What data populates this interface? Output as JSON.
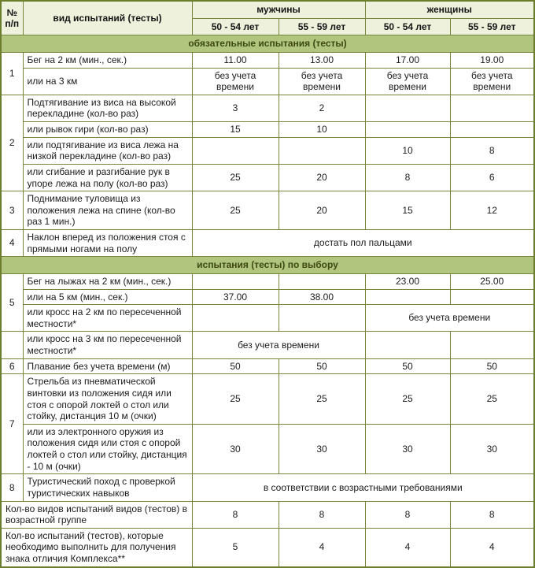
{
  "colors": {
    "outer_border": "#6d7d2e",
    "inner_border": "#76863a",
    "header_bg": "#eef1dc",
    "section_bg": "#b2c57f",
    "section_text": "#3c490f",
    "body_bg": "#ffffff",
    "body_text": "#1c1c1c"
  },
  "header": {
    "col_num": "№ п/п",
    "col_test": "вид испытаний (тесты)",
    "group_men": "мужчины",
    "group_women": "женщины",
    "ages": [
      "50 - 54 лет",
      "55 - 59 лет",
      "50 - 54 лет",
      "55 - 59 лет"
    ]
  },
  "rows": [
    {
      "type": "section",
      "text": "обязательные испытания (тесты)"
    },
    {
      "type": "data",
      "cells": [
        {
          "t": "1",
          "kind": "num",
          "rowspan": 2
        },
        {
          "t": "Бег на 2 км (мин., сек.)",
          "kind": "name"
        },
        {
          "t": "11.00"
        },
        {
          "t": "13.00"
        },
        {
          "t": "17.00"
        },
        {
          "t": "19.00"
        }
      ]
    },
    {
      "type": "data",
      "cells": [
        {
          "t": "или на 3 км",
          "kind": "name"
        },
        {
          "t": "без учета времени"
        },
        {
          "t": "без учета времени"
        },
        {
          "t": "без учета времени"
        },
        {
          "t": "без учета времени"
        }
      ]
    },
    {
      "type": "data",
      "cells": [
        {
          "t": "2",
          "kind": "num",
          "rowspan": 4
        },
        {
          "t": "Подтягивание из виса на высокой перекладине (кол-во раз)",
          "kind": "name"
        },
        {
          "t": "3"
        },
        {
          "t": "2"
        },
        {
          "t": ""
        },
        {
          "t": ""
        }
      ]
    },
    {
      "type": "data",
      "cells": [
        {
          "t": "или рывок гири (кол-во раз)",
          "kind": "name"
        },
        {
          "t": "15"
        },
        {
          "t": "10"
        },
        {
          "t": ""
        },
        {
          "t": ""
        }
      ]
    },
    {
      "type": "data",
      "cells": [
        {
          "t": "или подтягивание из виса лежа на низкой перекладине (кол-во раз)",
          "kind": "name"
        },
        {
          "t": ""
        },
        {
          "t": ""
        },
        {
          "t": "10"
        },
        {
          "t": "8"
        }
      ]
    },
    {
      "type": "data",
      "cells": [
        {
          "t": "или сгибание и разгибание рук в упоре лежа на полу (кол-во раз)",
          "kind": "name"
        },
        {
          "t": "25"
        },
        {
          "t": "20"
        },
        {
          "t": "8"
        },
        {
          "t": "6"
        }
      ]
    },
    {
      "type": "data",
      "cells": [
        {
          "t": "3",
          "kind": "num"
        },
        {
          "t": "Поднимание туловища из положения лежа на спине (кол-во раз 1 мин.)",
          "kind": "name"
        },
        {
          "t": "25"
        },
        {
          "t": "20"
        },
        {
          "t": "15"
        },
        {
          "t": "12"
        }
      ]
    },
    {
      "type": "data",
      "cells": [
        {
          "t": "4",
          "kind": "num"
        },
        {
          "t": "Наклон вперед из положения стоя с прямыми ногами на полу",
          "kind": "name"
        },
        {
          "t": "достать пол пальцами",
          "colspan": 4
        }
      ]
    },
    {
      "type": "section",
      "text": "испытания (тесты) по выбору"
    },
    {
      "type": "data",
      "cells": [
        {
          "t": "5",
          "kind": "num",
          "rowspan": 3
        },
        {
          "t": "Бег на лыжах на 2 км (мин., сек.)",
          "kind": "name"
        },
        {
          "t": ""
        },
        {
          "t": ""
        },
        {
          "t": "23.00"
        },
        {
          "t": "25.00"
        }
      ]
    },
    {
      "type": "data",
      "cells": [
        {
          "t": "или на 5 км (мин., сек.)",
          "kind": "name"
        },
        {
          "t": "37.00"
        },
        {
          "t": "38.00"
        },
        {
          "t": ""
        },
        {
          "t": ""
        }
      ]
    },
    {
      "type": "data",
      "cells": [
        {
          "t": "или кросс на 2 км по пересеченной местности*",
          "kind": "name"
        },
        {
          "t": ""
        },
        {
          "t": ""
        },
        {
          "t": "без учета времени",
          "colspan": 2
        }
      ]
    },
    {
      "type": "data",
      "cells": [
        {
          "t": "",
          "kind": "num"
        },
        {
          "t": "или кросс на 3 км по пересеченной местности*",
          "kind": "name"
        },
        {
          "t": "без учета времени",
          "colspan": 2
        },
        {
          "t": ""
        },
        {
          "t": ""
        }
      ]
    },
    {
      "type": "data",
      "cells": [
        {
          "t": "6",
          "kind": "num"
        },
        {
          "t": "Плавание без учета времени (м)",
          "kind": "name"
        },
        {
          "t": "50"
        },
        {
          "t": "50"
        },
        {
          "t": "50"
        },
        {
          "t": "50"
        }
      ]
    },
    {
      "type": "data",
      "cells": [
        {
          "t": "7",
          "kind": "num",
          "rowspan": 2
        },
        {
          "t": "Стрельба из пневматической винтовки из положения сидя или стоя с опорой локтей о стол или стойку, дистанция 10 м (очки)",
          "kind": "name"
        },
        {
          "t": "25"
        },
        {
          "t": "25"
        },
        {
          "t": "25"
        },
        {
          "t": "25"
        }
      ]
    },
    {
      "type": "data",
      "cells": [
        {
          "t": "или из электронного оружия из положения сидя или стоя с опорой локтей о стол или стойку, дистанция - 10 м (очки)",
          "kind": "name"
        },
        {
          "t": "30"
        },
        {
          "t": "30"
        },
        {
          "t": "30"
        },
        {
          "t": "30"
        }
      ]
    },
    {
      "type": "data",
      "cells": [
        {
          "t": "8",
          "kind": "num"
        },
        {
          "t": "Туристический поход с проверкой туристических навыков",
          "kind": "name"
        },
        {
          "t": "в соответствии с возрастными требованиями",
          "colspan": 4
        }
      ]
    },
    {
      "type": "data",
      "cells": [
        {
          "t": "Кол-во видов испытаний видов (тестов) в возрастной группе",
          "kind": "name",
          "colspan": 2
        },
        {
          "t": "8"
        },
        {
          "t": "8"
        },
        {
          "t": "8"
        },
        {
          "t": "8"
        }
      ]
    },
    {
      "type": "data",
      "cells": [
        {
          "t": "Кол-во испытаний (тестов), которые необходимо выполнить для получения знака отличия Комплекса**",
          "kind": "name",
          "colspan": 2
        },
        {
          "t": "5"
        },
        {
          "t": "4"
        },
        {
          "t": "4"
        },
        {
          "t": "4"
        }
      ]
    }
  ]
}
